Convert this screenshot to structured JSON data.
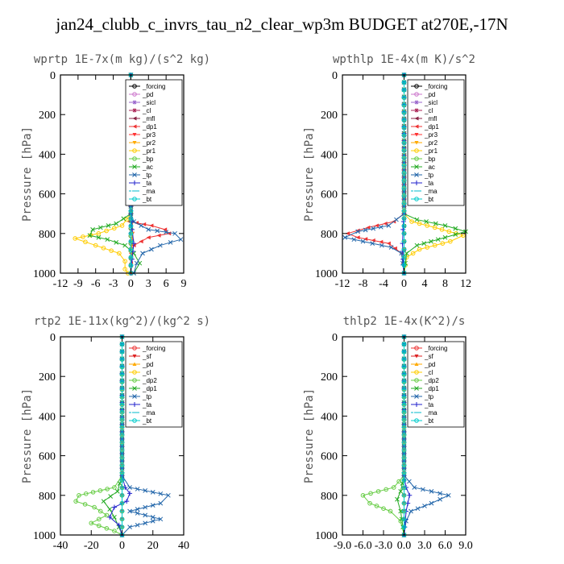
{
  "title": "jan24_clubb_c_invrs_tau_n2_clear_wp3m  BUDGET at270E,-17N",
  "chart_data": [
    {
      "type": "line",
      "title": "wprtp  1E-7x(m kg)/(s^2 kg)",
      "ylabel": "Pressure [hPa]",
      "xlim": [
        -12,
        9
      ],
      "ylim": [
        1000,
        0
      ],
      "xticks": [
        "-12",
        "-9",
        "-6",
        "-3",
        "0",
        "3",
        "6",
        "9"
      ],
      "yticks": [
        "0",
        "200",
        "400",
        "600",
        "800",
        "1000"
      ],
      "grid": false,
      "legend_position": "top-right",
      "series": [
        {
          "name": "_forcing",
          "color": "#000000",
          "marker": "o",
          "x": [
            0,
            0,
            0,
            0
          ],
          "y": [
            0,
            700,
            850,
            1000
          ]
        },
        {
          "name": "_pd",
          "color": "#cc77cc",
          "marker": "o",
          "x": [
            0,
            0,
            0
          ],
          "y": [
            0,
            800,
            1000
          ]
        },
        {
          "name": "_sicl",
          "color": "#9966cc",
          "marker": "*",
          "x": [
            0,
            0,
            0
          ],
          "y": [
            0,
            800,
            1000
          ]
        },
        {
          "name": "_cl",
          "color": "#aa2255",
          "marker": "*",
          "x": [
            0,
            0,
            0
          ],
          "y": [
            0,
            800,
            1000
          ]
        },
        {
          "name": "_mfl",
          "color": "#882244",
          "marker": "<",
          "x": [
            0,
            0,
            0
          ],
          "y": [
            0,
            800,
            1000
          ]
        },
        {
          "name": "_dp1",
          "color": "#ee3333",
          "marker": "<",
          "x": [
            0,
            0,
            -0.3,
            3.5,
            5.8,
            6.5,
            3.0,
            0.5,
            0,
            0
          ],
          "y": [
            0,
            700,
            740,
            760,
            780,
            800,
            820,
            860,
            900,
            1000
          ]
        },
        {
          "name": "_pr3",
          "color": "#ff3333",
          "marker": "v",
          "x": [
            0,
            0,
            0.3,
            0
          ],
          "y": [
            0,
            700,
            800,
            1000
          ]
        },
        {
          "name": "_pr2",
          "color": "#ffaa00",
          "marker": "v",
          "x": [
            0,
            0,
            0.2,
            0
          ],
          "y": [
            0,
            700,
            800,
            1000
          ]
        },
        {
          "name": "_pr1",
          "color": "#ffcc00",
          "marker": "o",
          "x": [
            0,
            0,
            -1.5,
            -5.5,
            -9.5,
            -6.0,
            -2.0,
            -1.0,
            -1.0,
            -0.5
          ],
          "y": [
            0,
            700,
            760,
            800,
            825,
            860,
            900,
            940,
            980,
            1000
          ]
        },
        {
          "name": "_bp",
          "color": "#66cc44",
          "marker": "o",
          "x": [
            0,
            0,
            0,
            0
          ],
          "y": [
            0,
            700,
            850,
            1000
          ]
        },
        {
          "name": "_ac",
          "color": "#22aa22",
          "marker": "x",
          "x": [
            0,
            0,
            -2.5,
            -6.5,
            -7.0,
            -4.0,
            -1.0,
            0.5,
            1.5,
            0.5
          ],
          "y": [
            0,
            700,
            750,
            780,
            810,
            830,
            860,
            900,
            950,
            1000
          ]
        },
        {
          "name": "_tp",
          "color": "#2266aa",
          "marker": "x",
          "x": [
            0,
            0,
            0.5,
            3.0,
            7.5,
            8.5,
            5.0,
            2.0,
            1.0,
            0.5
          ],
          "y": [
            0,
            700,
            740,
            780,
            800,
            830,
            860,
            900,
            950,
            1000
          ]
        },
        {
          "name": "_ta",
          "color": "#2222cc",
          "marker": "+",
          "x": [
            0,
            0,
            0.2,
            0.5,
            0.2,
            0
          ],
          "y": [
            0,
            700,
            780,
            850,
            930,
            1000
          ]
        },
        {
          "name": "_ma",
          "color": "#00bbcc",
          "marker": "-",
          "x": [
            0,
            0,
            0
          ],
          "y": [
            0,
            800,
            1000
          ]
        },
        {
          "name": "_bt",
          "color": "#00cccc",
          "marker": "o",
          "x": [
            0,
            0,
            0
          ],
          "y": [
            0,
            800,
            1000
          ]
        }
      ]
    },
    {
      "type": "line",
      "title": "wpthlp  1E-4x(m K)/s^2",
      "ylabel": "Pressure [hPa]",
      "xlim": [
        -12,
        12
      ],
      "ylim": [
        1000,
        0
      ],
      "xticks": [
        "-12",
        "-8",
        "-4",
        "0",
        "4",
        "8",
        "12"
      ],
      "yticks": [
        "0",
        "200",
        "400",
        "600",
        "800",
        "1000"
      ],
      "grid": false,
      "legend_position": "top-right",
      "series": [
        {
          "name": "_forcing",
          "color": "#000000",
          "marker": "o",
          "x": [
            0,
            0,
            0
          ],
          "y": [
            0,
            800,
            1000
          ]
        },
        {
          "name": "_pd",
          "color": "#cc77cc",
          "marker": "o",
          "x": [
            0,
            0,
            0
          ],
          "y": [
            0,
            800,
            1000
          ]
        },
        {
          "name": "_sicl",
          "color": "#9966cc",
          "marker": "*",
          "x": [
            0,
            0,
            0
          ],
          "y": [
            0,
            800,
            1000
          ]
        },
        {
          "name": "_cl",
          "color": "#aa2255",
          "marker": "*",
          "x": [
            0,
            0,
            0
          ],
          "y": [
            0,
            800,
            1000
          ]
        },
        {
          "name": "_mfl",
          "color": "#882244",
          "marker": "<",
          "x": [
            0,
            0,
            0
          ],
          "y": [
            0,
            800,
            1000
          ]
        },
        {
          "name": "_dp1",
          "color": "#ee3333",
          "marker": "<",
          "x": [
            0,
            0,
            -2.0,
            -7.0,
            -11.0,
            -9.0,
            -3.0,
            -0.5,
            0
          ],
          "y": [
            0,
            700,
            740,
            770,
            800,
            820,
            850,
            900,
            1000
          ]
        },
        {
          "name": "_pr3",
          "color": "#ff3333",
          "marker": "v",
          "x": [
            0,
            0,
            0
          ],
          "y": [
            0,
            800,
            1000
          ]
        },
        {
          "name": "_pr2",
          "color": "#ffaa00",
          "marker": "v",
          "x": [
            0,
            0,
            0
          ],
          "y": [
            0,
            800,
            1000
          ]
        },
        {
          "name": "_pr1",
          "color": "#ffcc00",
          "marker": "o",
          "x": [
            0,
            0,
            1.5,
            6.0,
            11.5,
            9.0,
            3.0,
            0.5,
            0
          ],
          "y": [
            0,
            700,
            740,
            770,
            810,
            840,
            880,
            920,
            1000
          ]
        },
        {
          "name": "_bp",
          "color": "#66cc44",
          "marker": "o",
          "x": [
            0,
            0,
            0
          ],
          "y": [
            0,
            800,
            1000
          ]
        },
        {
          "name": "_ac",
          "color": "#22aa22",
          "marker": "x",
          "x": [
            0,
            0,
            2.5,
            8.0,
            12.0,
            8.0,
            2.5,
            0.5,
            0
          ],
          "y": [
            0,
            700,
            730,
            760,
            790,
            820,
            860,
            900,
            1000
          ]
        },
        {
          "name": "_tp",
          "color": "#2266aa",
          "marker": "x",
          "x": [
            0,
            0,
            -3.0,
            -9.0,
            -11.5,
            -8.0,
            -2.5,
            -0.5,
            0
          ],
          "y": [
            0,
            700,
            760,
            790,
            820,
            840,
            870,
            900,
            1000
          ]
        },
        {
          "name": "_ta",
          "color": "#2222cc",
          "marker": "+",
          "x": [
            0,
            0,
            -0.2,
            -0.3,
            -0.2,
            0
          ],
          "y": [
            0,
            700,
            780,
            850,
            930,
            1000
          ]
        },
        {
          "name": "_ma",
          "color": "#00bbcc",
          "marker": "-",
          "x": [
            0,
            0,
            0
          ],
          "y": [
            0,
            800,
            1000
          ]
        },
        {
          "name": "_bt",
          "color": "#00cccc",
          "marker": "o",
          "x": [
            0,
            0,
            0
          ],
          "y": [
            0,
            800,
            1000
          ]
        }
      ]
    },
    {
      "type": "line",
      "title": "rtp2  1E-11x(kg^2)/(kg^2 s)",
      "ylabel": "Pressure [hPa]",
      "xlim": [
        -40,
        40
      ],
      "ylim": [
        1000,
        0
      ],
      "xticks": [
        "-40",
        "-20",
        "0",
        "20",
        "40"
      ],
      "yticks": [
        "0",
        "200",
        "400",
        "600",
        "800",
        "1000"
      ],
      "grid": false,
      "legend_position": "top-right",
      "series": [
        {
          "name": "_forcing",
          "color": "#ee3333",
          "marker": "o",
          "x": [
            0,
            0,
            0
          ],
          "y": [
            0,
            800,
            1000
          ]
        },
        {
          "name": "_sf",
          "color": "#dd2222",
          "marker": "v",
          "x": [
            0,
            0,
            0
          ],
          "y": [
            0,
            800,
            1000
          ]
        },
        {
          "name": "_pd",
          "color": "#ffaa00",
          "marker": "^",
          "x": [
            0,
            0,
            0
          ],
          "y": [
            0,
            800,
            1000
          ]
        },
        {
          "name": "_cl",
          "color": "#ffcc00",
          "marker": "o",
          "x": [
            0,
            0,
            0
          ],
          "y": [
            0,
            800,
            1000
          ]
        },
        {
          "name": "_dp2",
          "color": "#66cc44",
          "marker": "o",
          "x": [
            0,
            0,
            -5,
            -28,
            -30,
            -18,
            -10,
            -20,
            -5,
            0
          ],
          "y": [
            0,
            700,
            760,
            800,
            830,
            860,
            900,
            940,
            980,
            1000
          ]
        },
        {
          "name": "_dp1",
          "color": "#22aa22",
          "marker": "x",
          "x": [
            0,
            0,
            -3,
            -12,
            -8,
            -5,
            -2,
            0
          ],
          "y": [
            0,
            700,
            780,
            830,
            870,
            910,
            960,
            1000
          ]
        },
        {
          "name": "_tp",
          "color": "#2266aa",
          "marker": "x",
          "x": [
            0,
            0,
            5,
            30,
            25,
            5,
            25,
            5,
            0
          ],
          "y": [
            0,
            700,
            760,
            800,
            840,
            880,
            920,
            960,
            1000
          ]
        },
        {
          "name": "_ta",
          "color": "#2222cc",
          "marker": "+",
          "x": [
            0,
            0,
            2,
            5,
            3,
            -5,
            -8,
            -2,
            0
          ],
          "y": [
            0,
            700,
            760,
            790,
            830,
            860,
            910,
            950,
            1000
          ]
        },
        {
          "name": "_ma",
          "color": "#00bbcc",
          "marker": "-",
          "x": [
            0,
            0,
            0
          ],
          "y": [
            0,
            800,
            1000
          ]
        },
        {
          "name": "_bt",
          "color": "#00cccc",
          "marker": "o",
          "x": [
            0,
            0,
            0
          ],
          "y": [
            0,
            800,
            1000
          ]
        }
      ]
    },
    {
      "type": "line",
      "title": "thlp2  1E-4x(K^2)/s",
      "ylabel": "Pressure [hPa]",
      "xlim": [
        -9,
        9
      ],
      "ylim": [
        1000,
        0
      ],
      "xticks": [
        "-9.0",
        "-6.0",
        "-3.0",
        "0.0",
        "3.0",
        "6.0",
        "9.0"
      ],
      "yticks": [
        "0",
        "200",
        "400",
        "600",
        "800",
        "1000"
      ],
      "grid": false,
      "legend_position": "top-right",
      "series": [
        {
          "name": "_forcing",
          "color": "#ee3333",
          "marker": "o",
          "x": [
            0,
            0,
            0
          ],
          "y": [
            0,
            800,
            1000
          ]
        },
        {
          "name": "_sf",
          "color": "#dd2222",
          "marker": "v",
          "x": [
            0,
            0,
            0
          ],
          "y": [
            0,
            800,
            1000
          ]
        },
        {
          "name": "_pd",
          "color": "#ffaa00",
          "marker": "^",
          "x": [
            0,
            0,
            0
          ],
          "y": [
            0,
            800,
            1000
          ]
        },
        {
          "name": "_cl",
          "color": "#ffcc00",
          "marker": "o",
          "x": [
            0,
            0,
            0
          ],
          "y": [
            0,
            800,
            1000
          ]
        },
        {
          "name": "_dp2",
          "color": "#66cc44",
          "marker": "o",
          "x": [
            0,
            0,
            -1.5,
            -6.0,
            -5.0,
            -2.0,
            -0.5,
            0
          ],
          "y": [
            0,
            700,
            760,
            800,
            840,
            880,
            930,
            1000
          ]
        },
        {
          "name": "_dp1",
          "color": "#22aa22",
          "marker": "x",
          "x": [
            0,
            0,
            -0.5,
            -1.0,
            -0.5,
            0
          ],
          "y": [
            0,
            700,
            780,
            820,
            880,
            1000
          ]
        },
        {
          "name": "_tp",
          "color": "#2266aa",
          "marker": "x",
          "x": [
            0,
            0,
            1.5,
            6.5,
            4.0,
            1.0,
            0.3,
            0
          ],
          "y": [
            0,
            700,
            760,
            800,
            840,
            880,
            930,
            1000
          ]
        },
        {
          "name": "_ta",
          "color": "#2222cc",
          "marker": "+",
          "x": [
            0,
            0,
            0.3,
            0.8,
            0.3,
            0
          ],
          "y": [
            0,
            700,
            760,
            800,
            880,
            1000
          ]
        },
        {
          "name": "_ma",
          "color": "#00bbcc",
          "marker": "-",
          "x": [
            0,
            0,
            0
          ],
          "y": [
            0,
            800,
            1000
          ]
        },
        {
          "name": "_bt",
          "color": "#00cccc",
          "marker": "o",
          "x": [
            0,
            0,
            0
          ],
          "y": [
            0,
            800,
            1000
          ]
        }
      ]
    }
  ]
}
